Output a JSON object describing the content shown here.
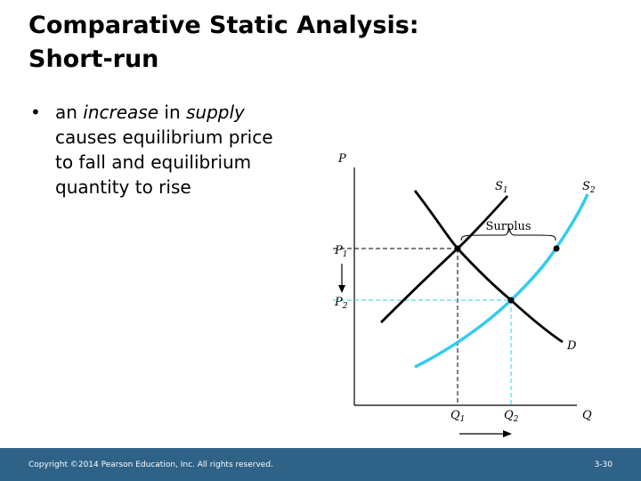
{
  "slide": {
    "title_line1": "Comparative Static Analysis:",
    "title_line2": "Short-run",
    "bullet": {
      "part1": "an ",
      "emph1": "increase",
      "part2": " in ",
      "emph2": "supply",
      "part3": " causes equilibrium price to fall and equilibrium quantity to rise"
    }
  },
  "diagram": {
    "y_axis_label": "P",
    "x_axis_label": "Q",
    "curves": [
      {
        "name": "S",
        "subscript": "1"
      },
      {
        "name": "S",
        "subscript": "2"
      },
      {
        "name": "D",
        "subscript": ""
      }
    ],
    "surplus_label": "Surplus",
    "price_ticks": [
      {
        "name": "P",
        "subscript": "1"
      },
      {
        "name": "P",
        "subscript": "2"
      }
    ],
    "quantity_ticks": [
      {
        "name": "Q",
        "subscript": "1"
      },
      {
        "name": "Q",
        "subscript": "2"
      }
    ],
    "colors": {
      "supply_shifted": "#33ccee",
      "original_lines": "#000000",
      "footer_bg": "#2e6287"
    }
  },
  "footer": {
    "copyright": "Copyright ©2014 Pearson Education, Inc. All rights reserved.",
    "page": "3-30"
  }
}
